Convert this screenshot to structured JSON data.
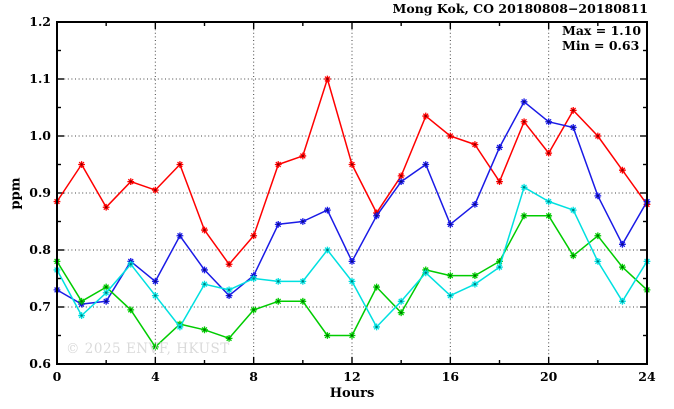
{
  "title": "Mong Kok, CO 20180808−20180811",
  "annotation": {
    "max_label": "Max = 1.10",
    "min_label": "Min = 0.63"
  },
  "watermark": "© 2025 ENVF, HKUST",
  "axis": {
    "ylabel": "ppm",
    "xlabel": "Hours"
  },
  "colors": {
    "red": "#ff0000",
    "blue": "#1a1ae6",
    "green": "#00cc00",
    "cyan": "#00e0e0",
    "grid": "#444444",
    "frame": "#000000",
    "watermark_gray": "#dadada"
  },
  "chart_data": {
    "type": "line",
    "title": "Mong Kok, CO 20180808−20180811",
    "xlabel": "Hours",
    "ylabel": "ppm",
    "xlim": [
      0,
      24
    ],
    "ylim": [
      0.6,
      1.2
    ],
    "grid": "dotted lines at major ticks, mirrored inward ticks on all four sides",
    "legend_position": "none",
    "marker": "asterisk-star",
    "x_major_ticks": [
      0,
      4,
      8,
      12,
      16,
      20,
      24
    ],
    "x_minor_ticks": [
      2,
      6,
      10,
      14,
      18,
      22
    ],
    "x_tick_labels": [
      "0",
      "4",
      "8",
      "12",
      "16",
      "20",
      "24"
    ],
    "y_major_ticks": [
      0.6,
      0.7,
      0.8,
      0.9,
      1.0,
      1.1,
      1.2
    ],
    "y_minor_ticks": [
      0.65,
      0.75,
      0.85,
      0.95,
      1.05,
      1.15
    ],
    "y_tick_labels": [
      "0.6",
      "0.7",
      "0.8",
      "0.9",
      "1.0",
      "1.1",
      "1.2"
    ],
    "x_gridlines": [
      4,
      8,
      12,
      16,
      20
    ],
    "y_gridlines": [
      0.7,
      0.8,
      0.9,
      1.0,
      1.1
    ],
    "annotations": [
      "Max = 1.10",
      "Min = 0.63"
    ],
    "x": [
      0,
      1,
      2,
      3,
      4,
      5,
      6,
      7,
      8,
      9,
      10,
      11,
      12,
      13,
      14,
      15,
      16,
      17,
      18,
      19,
      20,
      21,
      22,
      23,
      24
    ],
    "series": [
      {
        "name": "series-red",
        "color": "#ff0000",
        "values": [
          0.885,
          0.95,
          0.875,
          0.92,
          0.905,
          0.95,
          0.835,
          0.775,
          0.825,
          0.95,
          0.965,
          1.1,
          0.95,
          0.865,
          0.93,
          1.035,
          1.0,
          0.985,
          0.92,
          1.025,
          0.97,
          1.045,
          1.0,
          0.94,
          0.88
        ]
      },
      {
        "name": "series-blue",
        "color": "#1a1ae6",
        "values": [
          0.73,
          0.705,
          0.71,
          0.78,
          0.745,
          0.825,
          0.765,
          0.72,
          0.755,
          0.845,
          0.85,
          0.87,
          0.78,
          0.86,
          0.92,
          0.95,
          0.845,
          0.88,
          0.98,
          1.06,
          1.025,
          1.015,
          0.895,
          0.81,
          0.885
        ]
      },
      {
        "name": "series-green",
        "color": "#00cc00",
        "values": [
          0.78,
          0.71,
          0.735,
          0.695,
          0.63,
          0.67,
          0.66,
          0.645,
          0.695,
          0.71,
          0.71,
          0.65,
          0.65,
          0.735,
          0.69,
          0.765,
          0.755,
          0.755,
          0.78,
          0.86,
          0.86,
          0.79,
          0.825,
          0.77,
          0.73
        ]
      },
      {
        "name": "series-cyan",
        "color": "#00e0e0",
        "values": [
          0.765,
          0.685,
          0.725,
          0.775,
          0.72,
          0.665,
          0.74,
          0.73,
          0.75,
          0.745,
          0.745,
          0.8,
          0.745,
          0.665,
          0.71,
          0.76,
          0.72,
          0.74,
          0.77,
          0.91,
          0.885,
          0.87,
          0.78,
          0.71,
          0.78
        ]
      }
    ]
  }
}
